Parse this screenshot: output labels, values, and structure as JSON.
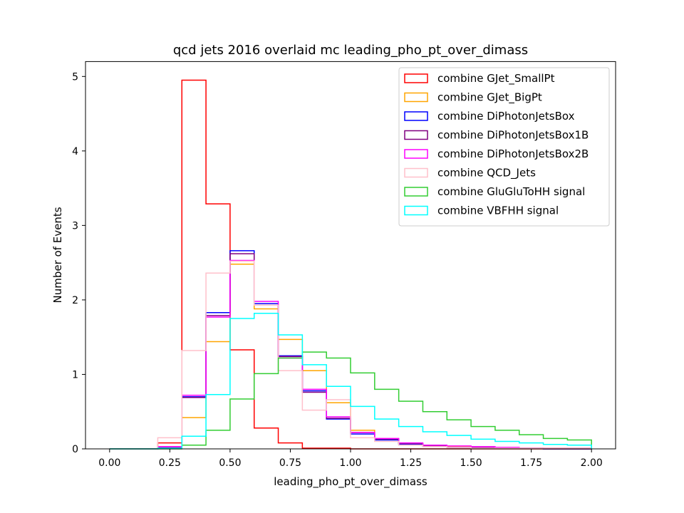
{
  "chart_data": {
    "type": "step-histogram",
    "title": "qcd jets 2016 overlaid mc leading_pho_pt_over_dimass",
    "xlabel": "leading_pho_pt_over_dimass",
    "ylabel": "Number of Events",
    "xlim": [
      -0.1,
      2.1
    ],
    "ylim": [
      0,
      5.2
    ],
    "x_ticks": [
      0.0,
      0.25,
      0.5,
      0.75,
      1.0,
      1.25,
      1.5,
      1.75,
      2.0
    ],
    "x_tick_labels": [
      "0.00",
      "0.25",
      "0.50",
      "0.75",
      "1.00",
      "1.25",
      "1.50",
      "1.75",
      "2.00"
    ],
    "y_ticks": [
      0,
      1,
      2,
      3,
      4,
      5
    ],
    "y_tick_labels": [
      "0",
      "1",
      "2",
      "3",
      "4",
      "5"
    ],
    "grid": false,
    "legend_position": "top-right",
    "bin_edges": [
      0.0,
      0.1,
      0.2,
      0.3,
      0.4,
      0.5,
      0.6,
      0.7,
      0.8,
      0.9,
      1.0,
      1.1,
      1.2,
      1.3,
      1.4,
      1.5,
      1.6,
      1.7,
      1.8,
      1.9,
      2.0
    ],
    "series": [
      {
        "name": "combine GJet_SmallPt",
        "color": "#ff0000",
        "values": [
          0,
          0,
          0.08,
          4.95,
          3.29,
          1.33,
          0.28,
          0.08,
          0.01,
          0.01,
          0,
          0,
          0,
          0,
          0,
          0,
          0,
          0,
          0,
          0
        ]
      },
      {
        "name": "combine GJet_BigPt",
        "color": "#ffa500",
        "values": [
          0,
          0,
          0.01,
          0.42,
          1.44,
          2.48,
          1.88,
          1.47,
          1.05,
          0.62,
          0.25,
          0.13,
          0.07,
          0.05,
          0.03,
          0.02,
          0.01,
          0.01,
          0.01,
          0.01
        ]
      },
      {
        "name": "combine DiPhotonJetsBox",
        "color": "#0000ff",
        "values": [
          0,
          0,
          0.02,
          0.7,
          1.83,
          2.66,
          1.95,
          1.25,
          0.78,
          0.4,
          0.2,
          0.12,
          0.06,
          0.04,
          0.02,
          0.01,
          0.01,
          0.01,
          0,
          0
        ]
      },
      {
        "name": "combine DiPhotonJetsBox1B",
        "color": "#800080",
        "values": [
          0,
          0,
          0.02,
          0.69,
          1.79,
          2.62,
          1.93,
          1.24,
          0.76,
          0.41,
          0.22,
          0.13,
          0.07,
          0.04,
          0.02,
          0.02,
          0.01,
          0.01,
          0,
          0
        ]
      },
      {
        "name": "combine DiPhotonJetsBox2B",
        "color": "#ff00ff",
        "values": [
          0,
          0,
          0.03,
          0.72,
          1.77,
          2.53,
          1.98,
          1.22,
          0.8,
          0.43,
          0.22,
          0.14,
          0.08,
          0.05,
          0.04,
          0.03,
          0.02,
          0.01,
          0.01,
          0.01
        ]
      },
      {
        "name": "combine QCD_Jets",
        "color": "#ffc0cb",
        "values": [
          0,
          0,
          0.15,
          1.32,
          2.36,
          2.52,
          1.93,
          1.05,
          0.52,
          0.66,
          0.15,
          0.1,
          0.05,
          0.03,
          0.02,
          0.01,
          0.01,
          0.01,
          0.01,
          0.01
        ]
      },
      {
        "name": "combine GluGluToHH signal",
        "color": "#32cd32",
        "values": [
          0,
          0,
          0,
          0.05,
          0.25,
          0.67,
          1.01,
          1.22,
          1.3,
          1.22,
          1.02,
          0.8,
          0.64,
          0.5,
          0.39,
          0.3,
          0.25,
          0.19,
          0.14,
          0.12
        ]
      },
      {
        "name": "combine VBFHH signal",
        "color": "#00ffff",
        "values": [
          0,
          0,
          0.01,
          0.17,
          0.73,
          1.75,
          1.82,
          1.53,
          1.13,
          0.84,
          0.57,
          0.4,
          0.3,
          0.23,
          0.18,
          0.13,
          0.1,
          0.08,
          0.06,
          0.05
        ]
      }
    ]
  }
}
